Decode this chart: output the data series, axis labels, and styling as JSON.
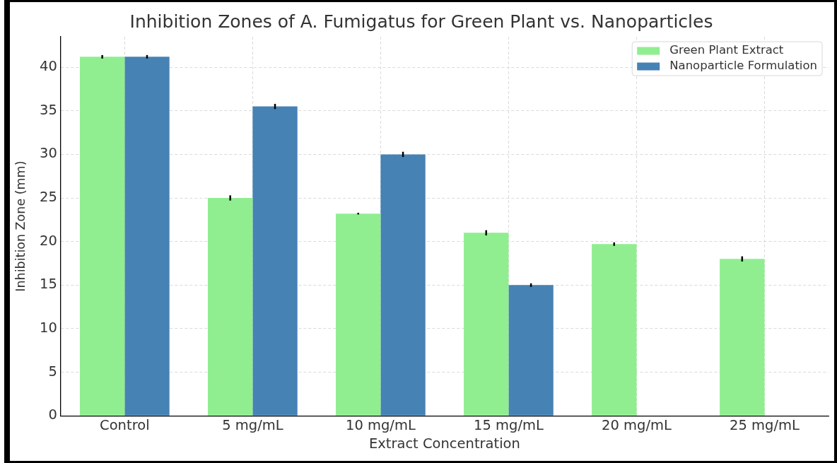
{
  "chart_data": {
    "type": "bar",
    "title": "Inhibition Zones of A. Fumigatus for Green Plant vs. Nanoparticles",
    "xlabel": "Extract Concentration",
    "ylabel": "Inhibition Zone (mm)",
    "categories": [
      "Control",
      "5 mg/mL",
      "10 mg/mL",
      "15 mg/mL",
      "20 mg/mL",
      "25 mg/mL"
    ],
    "series": [
      {
        "name": "Green Plant Extract",
        "color": "#90ee90",
        "values": [
          41.2,
          25.0,
          23.2,
          21.0,
          19.7,
          18.0
        ],
        "errors": [
          0.2,
          0.3,
          0.1,
          0.3,
          0.2,
          0.3
        ]
      },
      {
        "name": "Nanoparticle Formulation",
        "color": "#4682b4",
        "values": [
          41.2,
          35.5,
          30.0,
          15.0,
          null,
          null
        ],
        "errors": [
          0.2,
          0.3,
          0.3,
          0.2,
          null,
          null
        ]
      }
    ],
    "ylim": [
      0,
      43.5
    ],
    "yticks": [
      0,
      5,
      10,
      15,
      20,
      25,
      30,
      35,
      40
    ],
    "grid": true,
    "legend": "top right"
  }
}
